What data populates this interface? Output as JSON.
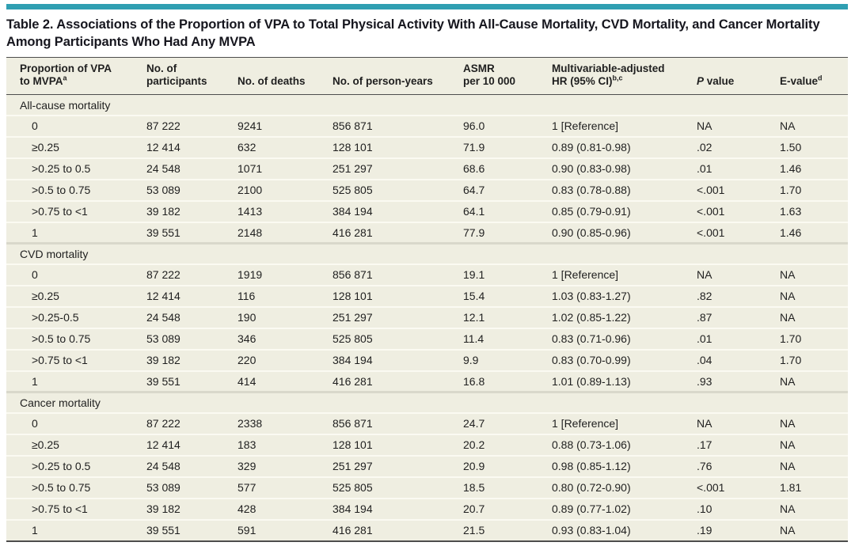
{
  "accent_color": "#2f9fb2",
  "title": {
    "line1": "Table 2. Associations of the Proportion of VPA to Total Physical Activity With All-Cause Mortality, CVD Mortality, and Cancer Mortality",
    "line2": "Among Participants Who Had Any MVPA"
  },
  "table": {
    "headers": [
      {
        "line1": "Proportion of VPA",
        "line2": "to MVPA",
        "sup": "a"
      },
      {
        "line1": "No. of",
        "line2": "participants"
      },
      {
        "line1": "No. of deaths"
      },
      {
        "line1": "No. of person-years"
      },
      {
        "line1": "ASMR",
        "line2": "per 10 000"
      },
      {
        "line1": "Multivariable-adjusted",
        "line2": "HR (95% CI)",
        "sup": "b,c"
      },
      {
        "italic": "P",
        "rest": " value"
      },
      {
        "line1": "E-value",
        "sup": "d"
      }
    ],
    "sections": [
      {
        "label": "All-cause mortality",
        "rows": [
          [
            "0",
            "87 222",
            "9241",
            "856 871",
            "96.0",
            "1 [Reference]",
            "NA",
            "NA"
          ],
          [
            "≥0.25",
            "12 414",
            "632",
            "128 101",
            "71.9",
            "0.89 (0.81-0.98)",
            ".02",
            "1.50"
          ],
          [
            ">0.25 to 0.5",
            "24 548",
            "1071",
            "251 297",
            "68.6",
            "0.90 (0.83-0.98)",
            ".01",
            "1.46"
          ],
          [
            ">0.5 to 0.75",
            "53 089",
            "2100",
            "525 805",
            "64.7",
            "0.83 (0.78-0.88)",
            "<.001",
            "1.70"
          ],
          [
            ">0.75 to <1",
            "39 182",
            "1413",
            "384 194",
            "64.1",
            "0.85 (0.79-0.91)",
            "<.001",
            "1.63"
          ],
          [
            "1",
            "39 551",
            "2148",
            "416 281",
            "77.9",
            "0.90 (0.85-0.96)",
            "<.001",
            "1.46"
          ]
        ]
      },
      {
        "label": "CVD mortality",
        "rows": [
          [
            "0",
            "87 222",
            "1919",
            "856 871",
            "19.1",
            "1 [Reference]",
            "NA",
            "NA"
          ],
          [
            "≥0.25",
            "12 414",
            "116",
            "128 101",
            "15.4",
            "1.03 (0.83-1.27)",
            ".82",
            "NA"
          ],
          [
            ">0.25-0.5",
            "24 548",
            "190",
            "251 297",
            "12.1",
            "1.02 (0.85-1.22)",
            ".87",
            "NA"
          ],
          [
            ">0.5 to 0.75",
            "53 089",
            "346",
            "525 805",
            "11.4",
            "0.83 (0.71-0.96)",
            ".01",
            "1.70"
          ],
          [
            ">0.75 to <1",
            "39 182",
            "220",
            "384 194",
            "9.9",
            "0.83 (0.70-0.99)",
            ".04",
            "1.70"
          ],
          [
            "1",
            "39 551",
            "414",
            "416 281",
            "16.8",
            "1.01 (0.89-1.13)",
            ".93",
            "NA"
          ]
        ]
      },
      {
        "label": "Cancer mortality",
        "rows": [
          [
            "0",
            "87 222",
            "2338",
            "856 871",
            "24.7",
            "1 [Reference]",
            "NA",
            "NA"
          ],
          [
            "≥0.25",
            "12 414",
            "183",
            "128 101",
            "20.2",
            "0.88 (0.73-1.06)",
            ".17",
            "NA"
          ],
          [
            ">0.25 to 0.5",
            "24 548",
            "329",
            "251 297",
            "20.9",
            "0.98 (0.85-1.12)",
            ".76",
            "NA"
          ],
          [
            ">0.5 to 0.75",
            "53 089",
            "577",
            "525 805",
            "18.5",
            "0.80 (0.72-0.90)",
            "<.001",
            "1.81"
          ],
          [
            ">0.75 to <1",
            "39 182",
            "428",
            "384 194",
            "20.7",
            "0.89 (0.77-1.02)",
            ".10",
            "NA"
          ],
          [
            "1",
            "39 551",
            "591",
            "416 281",
            "21.5",
            "0.93 (0.83-1.04)",
            ".19",
            "NA"
          ]
        ]
      }
    ]
  }
}
